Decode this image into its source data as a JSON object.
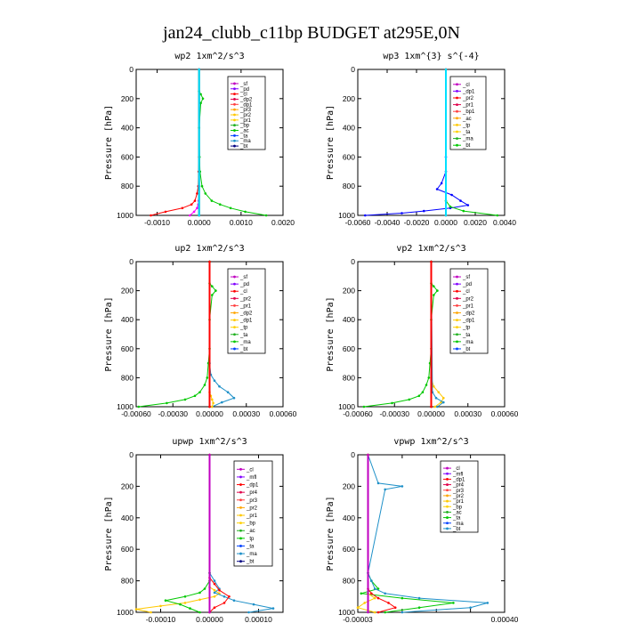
{
  "figure": {
    "title": "jan24_clubb_c11bp  BUDGET at295E,0N"
  },
  "chart_data": [
    {
      "type": "line",
      "title": "wp2  1xm^2/s^3",
      "ylabel": "Pressure [hPa]",
      "xlim": [
        -0.0015,
        0.002
      ],
      "ylim": [
        1000,
        0
      ],
      "xticks": [
        -0.001,
        0,
        0.001,
        0.002
      ],
      "xtick_labels": [
        "-0.0010",
        "0.0000",
        "0.0010",
        "0.0020"
      ],
      "yticks": [
        0,
        200,
        400,
        600,
        800,
        1000
      ],
      "ytick_labels": [
        "0",
        "200",
        "400",
        "600",
        "800",
        "1000"
      ],
      "legend": [
        "_sf",
        "_pd",
        "_cl",
        "_dp2",
        "_dp1",
        "_pr3",
        "_pr2",
        "_pr1",
        "_bp",
        "_ac",
        "_ta",
        "_ma",
        "_bt"
      ],
      "series": [
        {
          "name": "_dp1",
          "color": "#ff0000",
          "y": [
            1000,
            975,
            950,
            925,
            900,
            850,
            800,
            700,
            600,
            0
          ],
          "x": [
            -0.00115,
            -0.0008,
            -0.0004,
            -0.00018,
            -0.0001,
            -5e-05,
            -2e-05,
            -1e-05,
            0,
            0
          ]
        },
        {
          "name": "_bp",
          "color": "#00c800",
          "y": [
            1000,
            975,
            950,
            925,
            900,
            850,
            800,
            700,
            600,
            400,
            230,
            200,
            170,
            150,
            0
          ],
          "x": [
            0.0016,
            0.0011,
            0.00075,
            0.0005,
            0.0003,
            0.00015,
            7e-05,
            2e-05,
            1e-05,
            0,
            4e-05,
            9e-05,
            4e-05,
            0,
            0
          ]
        },
        {
          "name": "_pr1",
          "color": "#ff00ff",
          "y": [
            1000,
            975,
            950,
            925,
            900,
            800,
            0
          ],
          "x": [
            -0.00022,
            -0.00012,
            -5e-05,
            -2e-05,
            -1e-05,
            0,
            0
          ]
        },
        {
          "name": "_sf",
          "color": "#000000",
          "y": [
            1000,
            0
          ],
          "x": [
            0,
            0
          ]
        },
        {
          "name": "_bt",
          "color": "#00e0ff",
          "y": [
            1000,
            0
          ],
          "x": [
            0,
            0
          ]
        }
      ]
    },
    {
      "type": "line",
      "title": "wp3  1xm^{3} s^{-4}",
      "ylabel": "Pressure [hPa]",
      "xlim": [
        -0.006,
        0.004
      ],
      "ylim": [
        1000,
        0
      ],
      "xticks": [
        -0.006,
        -0.004,
        -0.002,
        0,
        0.002,
        0.004
      ],
      "xtick_labels": [
        "-0.0060",
        "-0.0040",
        "-0.0020",
        "0.0000",
        "0.0020",
        "0.0040"
      ],
      "yticks": [
        0,
        200,
        400,
        600,
        800,
        1000
      ],
      "ytick_labels": [
        "0",
        "200",
        "400",
        "600",
        "800",
        "1000"
      ],
      "legend": [
        "_cl",
        "_dp1",
        "_pr2",
        "_pr1",
        "_bp1",
        "_ac",
        "_tp",
        "_ta",
        "_ma",
        "_bt"
      ],
      "series": [
        {
          "name": "_tp",
          "color": "#0000ff",
          "y": [
            1000,
            985,
            970,
            950,
            930,
            900,
            860,
            820,
            780,
            700,
            600,
            0
          ],
          "x": [
            -0.0055,
            -0.003,
            -0.0015,
            0.0003,
            0.0015,
            0.001,
            0.0004,
            -0.0006,
            -0.0003,
            0,
            0,
            0
          ]
        },
        {
          "name": "_ac",
          "color": "#00c800",
          "y": [
            1000,
            970,
            940,
            900,
            0
          ],
          "x": [
            0.0035,
            0.0012,
            0.0003,
            0,
            0
          ]
        },
        {
          "name": "_cl",
          "color": "#ff0000",
          "y": [
            1000,
            0
          ],
          "x": [
            0,
            0
          ]
        },
        {
          "name": "_bt",
          "color": "#00e0ff",
          "y": [
            1000,
            0
          ],
          "x": [
            0,
            0
          ]
        }
      ]
    },
    {
      "type": "line",
      "title": "up2  1xm^2/s^3",
      "ylabel": "Pressure [hPa]",
      "xlim": [
        -0.0006,
        0.0006
      ],
      "ylim": [
        1000,
        0
      ],
      "xticks": [
        -0.0006,
        -0.0003,
        0,
        0.0003,
        0.0006
      ],
      "xtick_labels": [
        "-0.00060",
        "-0.00030",
        "0.00000",
        "0.00030",
        "0.00060"
      ],
      "yticks": [
        0,
        200,
        400,
        600,
        800,
        1000
      ],
      "ytick_labels": [
        "0",
        "200",
        "400",
        "600",
        "800",
        "1000"
      ],
      "legend": [
        "_sf",
        "_pd",
        "_cl",
        "_pr2",
        "_pr1",
        "_dp2",
        "_dp1",
        "_tp",
        "_ta",
        "_ma",
        "_bt"
      ],
      "series": [
        {
          "name": "_dp1",
          "color": "#00c800",
          "y": [
            1000,
            975,
            950,
            925,
            900,
            850,
            800,
            700,
            600,
            400,
            230,
            200,
            170,
            150,
            0
          ],
          "x": [
            -0.00058,
            -0.00035,
            -0.0002,
            -0.00012,
            -8e-05,
            -4e-05,
            -2e-05,
            -1e-05,
            0,
            0,
            2e-05,
            5e-05,
            2e-05,
            0,
            0
          ]
        },
        {
          "name": "_tp",
          "color": "#1e90c8",
          "y": [
            1000,
            970,
            940,
            900,
            860,
            820,
            780,
            700,
            0
          ],
          "x": [
            2e-05,
            0.0001,
            0.0002,
            0.00015,
            8e-05,
            4e-05,
            1e-05,
            0,
            0
          ]
        },
        {
          "name": "_pr1",
          "color": "#ffc800",
          "y": [
            1000,
            975,
            950,
            925,
            900,
            0
          ],
          "x": [
            2e-05,
            3e-05,
            2e-05,
            1e-05,
            0,
            0
          ]
        },
        {
          "name": "_sf",
          "color": "#000000",
          "y": [
            1000,
            0
          ],
          "x": [
            0,
            0
          ]
        },
        {
          "name": "_cl",
          "color": "#ff0000",
          "y": [
            1000,
            0
          ],
          "x": [
            0,
            0
          ]
        }
      ]
    },
    {
      "type": "line",
      "title": "vp2  1xm^2/s^3",
      "ylabel": "Pressure [hPa]",
      "xlim": [
        -0.0006,
        0.0006
      ],
      "ylim": [
        1000,
        0
      ],
      "xticks": [
        -0.0006,
        -0.0003,
        0,
        0.0003,
        0.0006
      ],
      "xtick_labels": [
        "-0.00060",
        "-0.00030",
        "0.00000",
        "0.00030",
        "0.00060"
      ],
      "yticks": [
        0,
        200,
        400,
        600,
        800,
        1000
      ],
      "ytick_labels": [
        "0",
        "200",
        "400",
        "600",
        "800",
        "1000"
      ],
      "legend": [
        "_sf",
        "_pd",
        "_cl",
        "_pr2",
        "_pr1",
        "_dp2",
        "_dp1",
        "_tp",
        "_ta",
        "_ma",
        "_bt"
      ],
      "series": [
        {
          "name": "_dp1",
          "color": "#00c800",
          "y": [
            1000,
            975,
            950,
            925,
            900,
            850,
            800,
            700,
            600,
            400,
            230,
            200,
            170,
            150,
            0
          ],
          "x": [
            -0.00055,
            -0.00032,
            -0.00018,
            -0.0001,
            -7e-05,
            -4e-05,
            -2e-05,
            -1e-05,
            0,
            0,
            2e-05,
            5e-05,
            2e-05,
            0,
            0
          ]
        },
        {
          "name": "_pr2",
          "color": "#ffc800",
          "y": [
            1000,
            970,
            940,
            900,
            860,
            800,
            0
          ],
          "x": [
            3e-05,
            8e-05,
            0.0001,
            6e-05,
            2e-05,
            0,
            0
          ]
        },
        {
          "name": "_tp",
          "color": "#1e90c8",
          "y": [
            1000,
            970,
            940,
            900,
            0
          ],
          "x": [
            5e-05,
            0.0001,
            4e-05,
            1e-05,
            0
          ]
        },
        {
          "name": "_sf",
          "color": "#000000",
          "y": [
            1000,
            0
          ],
          "x": [
            0,
            0
          ]
        },
        {
          "name": "_cl",
          "color": "#ff0000",
          "y": [
            1000,
            0
          ],
          "x": [
            0,
            0
          ]
        }
      ]
    },
    {
      "type": "line",
      "title": "upwp  1xm^2/s^3",
      "ylabel": "Pressure [hPa]",
      "xlim": [
        -0.00015,
        0.00015
      ],
      "ylim": [
        1000,
        0
      ],
      "xticks": [
        -0.0001,
        0,
        0.0001
      ],
      "xtick_labels": [
        "-0.00010",
        "0.00000",
        "0.00010"
      ],
      "yticks": [
        0,
        200,
        400,
        600,
        800,
        1000
      ],
      "ytick_labels": [
        "0",
        "200",
        "400",
        "600",
        "800",
        "1000"
      ],
      "legend": [
        "_cl",
        "_mfl",
        "_dp1",
        "_pr4",
        "_pr3",
        "_pr2",
        "_pr1",
        "_bp",
        "_ac",
        "_tp",
        "_ta",
        "_ma",
        "_bt"
      ],
      "series": [
        {
          "name": "_pr1",
          "color": "#ffc800",
          "y": [
            1000,
            980,
            960,
            940,
            920,
            900,
            880,
            860,
            840,
            800,
            750,
            0
          ],
          "x": [
            -0.00012,
            -0.00015,
            -0.0001,
            -5e-05,
            -2e-05,
            1e-05,
            2e-05,
            1e-05,
            0,
            0,
            0,
            0
          ]
        },
        {
          "name": "_ac",
          "color": "#00c800",
          "y": [
            1000,
            975,
            950,
            925,
            900,
            875,
            850,
            800,
            750,
            0
          ],
          "x": [
            -2e-05,
            -4e-05,
            -6e-05,
            -9e-05,
            -5e-05,
            -2e-05,
            -1e-05,
            0,
            0,
            0
          ]
        },
        {
          "name": "_tp",
          "color": "#1e90c8",
          "y": [
            1000,
            975,
            950,
            925,
            900,
            875,
            850,
            800,
            750,
            0
          ],
          "x": [
            8e-05,
            0.00013,
            9e-05,
            5e-05,
            3e-05,
            1e-05,
            2e-05,
            1e-05,
            0,
            0
          ]
        },
        {
          "name": "_pr3",
          "color": "#ff0000",
          "y": [
            1000,
            970,
            940,
            900,
            860,
            820,
            780,
            0
          ],
          "x": [
            0,
            1e-05,
            3e-05,
            4e-05,
            2e-05,
            1e-05,
            0,
            0
          ]
        },
        {
          "name": "_cl",
          "color": "#c000c0",
          "y": [
            1000,
            0
          ],
          "x": [
            0,
            0
          ]
        }
      ]
    },
    {
      "type": "line",
      "title": "vpwp  1xm^2/s^3",
      "ylabel": "Pressure [hPa]",
      "xlim": [
        -3e-05,
        0.0004
      ],
      "ylim": [
        1000,
        0
      ],
      "xticks": [
        -3e-05,
        0,
        0.0001,
        0.0002,
        0.0003,
        0.0004
      ],
      "xtick_labels": [
        "-0.00003",
        "",
        "",
        "",
        "",
        "0.00040"
      ],
      "yticks": [
        0,
        200,
        400,
        600,
        800,
        1000
      ],
      "ytick_labels": [
        "0",
        "200",
        "400",
        "600",
        "800",
        "1000"
      ],
      "legend": [
        "_cl",
        "_mfl",
        "_dp1",
        "_pr4",
        "_pr3",
        "_pr2",
        "_pr1",
        "_bp",
        "_ac",
        "_ta",
        "_ma",
        "_bt"
      ],
      "series": [
        {
          "name": "_ac",
          "color": "#00c800",
          "y": [
            1000,
            970,
            940,
            910,
            880,
            850,
            800,
            750,
            0
          ],
          "x": [
            5e-05,
            0.00015,
            0.00025,
            0.0001,
            -2e-05,
            3e-05,
            1e-05,
            0,
            0
          ]
        },
        {
          "name": "_tp",
          "color": "#1e90c8",
          "y": [
            1000,
            970,
            940,
            910,
            880,
            850,
            800,
            750,
            220,
            200,
            180,
            0
          ],
          "x": [
            0.0001,
            0.0003,
            0.00035,
            0.00015,
            5e-05,
            2e-05,
            1e-05,
            0,
            5e-05,
            0.0001,
            3e-05,
            0
          ]
        },
        {
          "name": "_pr2",
          "color": "#ffc800",
          "y": [
            1000,
            970,
            940,
            910,
            880,
            0
          ],
          "x": [
            2e-05,
            -3e-05,
            -1e-05,
            2e-05,
            0,
            0
          ]
        },
        {
          "name": "_pr3",
          "color": "#ff0000",
          "y": [
            1000,
            970,
            940,
            910,
            880,
            850,
            0
          ],
          "x": [
            3e-05,
            8e-05,
            6e-05,
            3e-05,
            1e-05,
            0,
            0
          ]
        },
        {
          "name": "_cl",
          "color": "#c000c0",
          "y": [
            1000,
            0
          ],
          "x": [
            0,
            0
          ]
        }
      ]
    }
  ]
}
